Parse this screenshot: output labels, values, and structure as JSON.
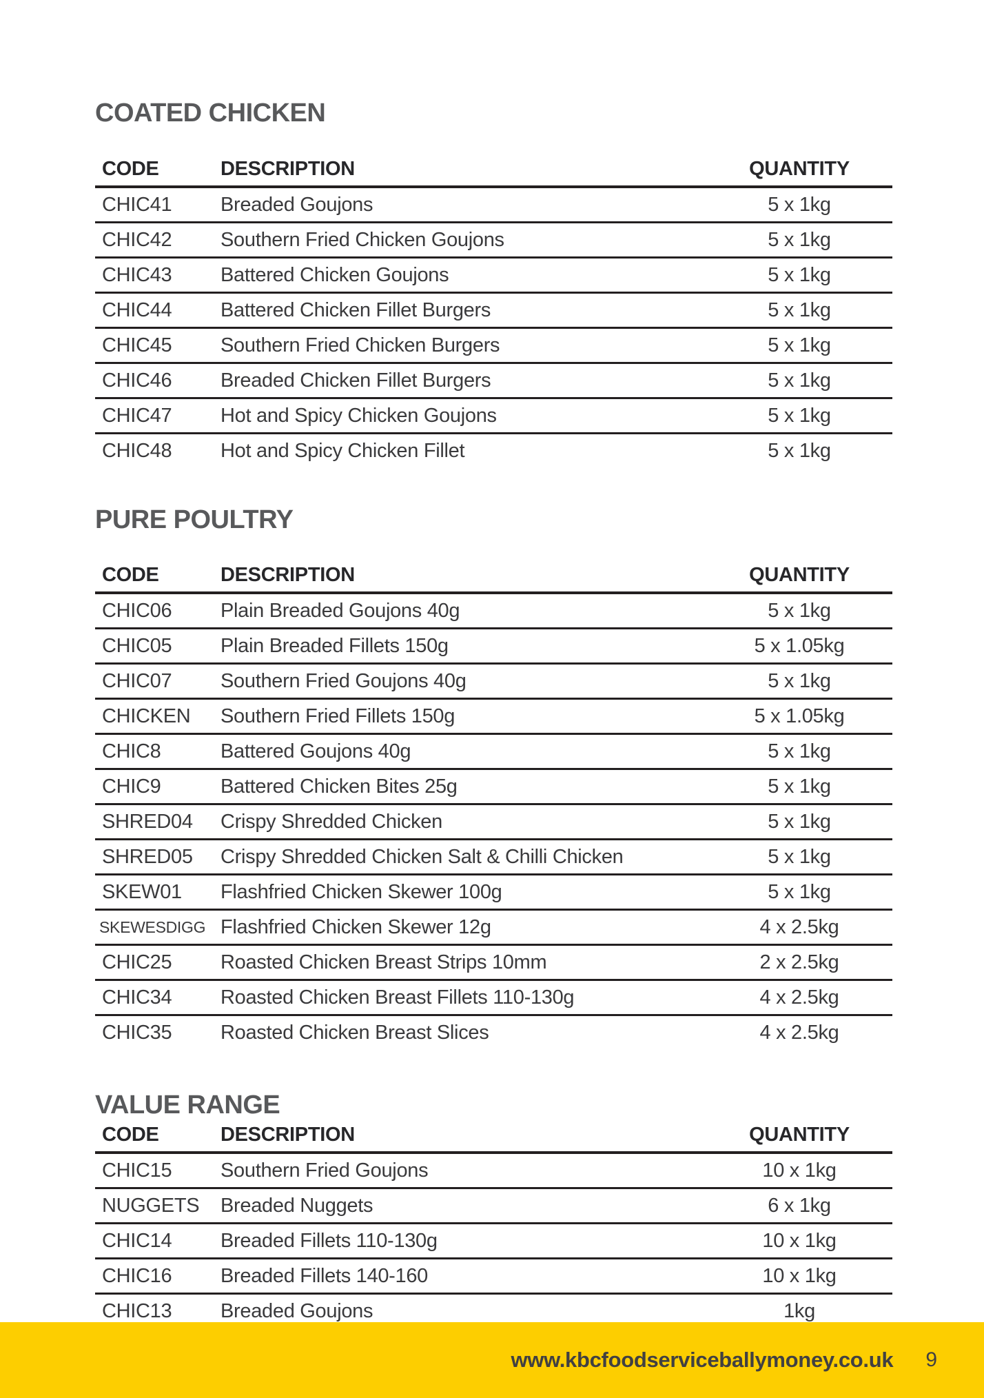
{
  "colors": {
    "accent_yellow": "#FDCE00",
    "heading_gray": "#58595B",
    "rule_black": "#231F20",
    "body_text": "#3A3A3C"
  },
  "footer": {
    "website": "www.kbcfoodserviceballymoney.co.uk",
    "page_number": "9"
  },
  "sections": [
    {
      "heading": "COATED CHICKEN",
      "columns": {
        "code": "CODE",
        "description": "DESCRIPTION",
        "quantity": "QUANTITY"
      },
      "last_row_divider": false,
      "rows": [
        {
          "code": "CHIC41",
          "description": "Breaded Goujons",
          "quantity": "5 x 1kg"
        },
        {
          "code": "CHIC42",
          "description": "Southern Fried Chicken Goujons",
          "quantity": "5 x 1kg"
        },
        {
          "code": "CHIC43",
          "description": "Battered Chicken Goujons",
          "quantity": "5 x 1kg"
        },
        {
          "code": "CHIC44",
          "description": "Battered Chicken Fillet Burgers",
          "quantity": "5 x 1kg"
        },
        {
          "code": "CHIC45",
          "description": "Southern Fried Chicken Burgers",
          "quantity": "5 x 1kg"
        },
        {
          "code": "CHIC46",
          "description": "Breaded Chicken Fillet Burgers",
          "quantity": "5 x 1kg"
        },
        {
          "code": "CHIC47",
          "description": "Hot and Spicy Chicken Goujons",
          "quantity": "5 x 1kg"
        },
        {
          "code": "CHIC48",
          "description": "Hot and Spicy Chicken Fillet",
          "quantity": "5 x 1kg"
        }
      ]
    },
    {
      "heading": "PURE POULTRY",
      "columns": {
        "code": "CODE",
        "description": "DESCRIPTION",
        "quantity": "QUANTITY"
      },
      "last_row_divider": false,
      "rows": [
        {
          "code": "CHIC06",
          "description": "Plain Breaded Goujons 40g",
          "quantity": "5 x 1kg"
        },
        {
          "code": "CHIC05",
          "description": "Plain Breaded Fillets 150g",
          "quantity": "5 x 1.05kg"
        },
        {
          "code": "CHIC07",
          "description": "Southern Fried Goujons 40g",
          "quantity": "5 x 1kg"
        },
        {
          "code": "CHICKEN",
          "description": "Southern Fried Fillets 150g",
          "quantity": "5 x 1.05kg"
        },
        {
          "code": "CHIC8",
          "description": "Battered Goujons 40g",
          "quantity": "5 x 1kg"
        },
        {
          "code": "CHIC9",
          "description": "Battered Chicken Bites 25g",
          "quantity": "5 x 1kg"
        },
        {
          "code": "SHRED04",
          "description": "Crispy Shredded Chicken",
          "quantity": "5 x 1kg"
        },
        {
          "code": "SHRED05",
          "description": "Crispy Shredded Chicken Salt & Chilli Chicken",
          "quantity": "5 x 1kg"
        },
        {
          "code": "SKEW01",
          "description": "Flashfried Chicken Skewer 100g",
          "quantity": "5 x 1kg"
        },
        {
          "code": "SKEWESDIGG",
          "description": "Flashfried Chicken Skewer 12g",
          "quantity": "4 x 2.5kg",
          "small_code": true
        },
        {
          "code": "CHIC25",
          "description": "Roasted Chicken Breast Strips 10mm",
          "quantity": "2 x 2.5kg"
        },
        {
          "code": "CHIC34",
          "description": "Roasted Chicken Breast Fillets 110-130g",
          "quantity": "4 x 2.5kg"
        },
        {
          "code": "CHIC35",
          "description": "Roasted Chicken Breast Slices",
          "quantity": "4 x 2.5kg"
        }
      ]
    },
    {
      "heading": "VALUE RANGE",
      "columns": {
        "code": "CODE",
        "description": "DESCRIPTION",
        "quantity": "QUANTITY"
      },
      "last_row_divider": true,
      "rows": [
        {
          "code": "CHIC15",
          "description": "Southern Fried Goujons",
          "quantity": "10 x 1kg"
        },
        {
          "code": "NUGGETS",
          "description": "Breaded Nuggets",
          "quantity": "6 x 1kg"
        },
        {
          "code": "CHIC14",
          "description": "Breaded Fillets 110-130g",
          "quantity": "10 x 1kg"
        },
        {
          "code": "CHIC16",
          "description": "Breaded Fillets 140-160",
          "quantity": "10 x 1kg"
        },
        {
          "code": "CHIC13",
          "description": "Breaded Goujons",
          "quantity": "1kg"
        }
      ]
    }
  ]
}
